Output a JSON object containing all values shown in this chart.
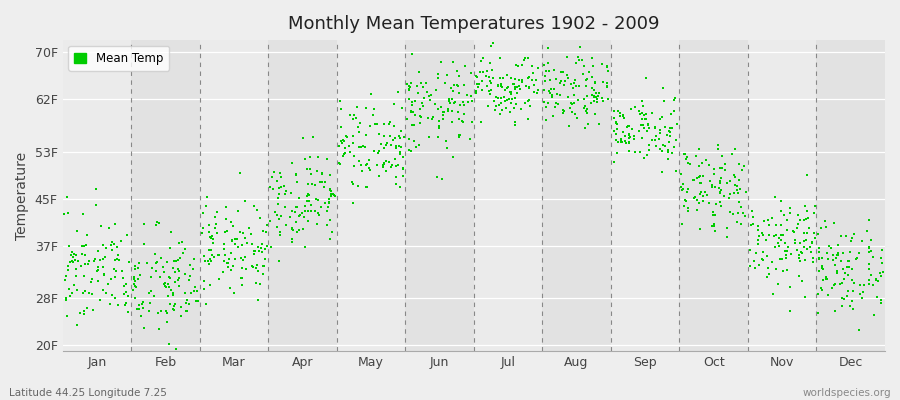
{
  "title": "Monthly Mean Temperatures 1902 - 2009",
  "ylabel": "Temperature",
  "xlabel_labels": [
    "Jan",
    "Feb",
    "Mar",
    "Apr",
    "May",
    "Jun",
    "Jul",
    "Aug",
    "Sep",
    "Oct",
    "Nov",
    "Dec"
  ],
  "ytick_labels": [
    "20F",
    "28F",
    "37F",
    "45F",
    "53F",
    "62F",
    "70F"
  ],
  "ytick_values": [
    20,
    28,
    37,
    45,
    53,
    62,
    70
  ],
  "ylim": [
    19,
    72
  ],
  "dot_color": "#00cc00",
  "background_color": "#eeeeee",
  "plot_bg_color": "#eeeeee",
  "legend_label": "Mean Temp",
  "bottom_left_text": "Latitude 44.25 Longitude 7.25",
  "bottom_right_text": "worldspecies.org",
  "years": 108,
  "seed": 42,
  "monthly_means": [
    33,
    30,
    37,
    45,
    53,
    60,
    64,
    63,
    56,
    47,
    38,
    33
  ],
  "monthly_stds": [
    5,
    5,
    4,
    4,
    4,
    4,
    3,
    3,
    3,
    4,
    4,
    4
  ],
  "band_colors": [
    "#ebebeb",
    "#e2e2e2"
  ],
  "dashed_line_color": "#888888",
  "white_line_color": "#ffffff"
}
